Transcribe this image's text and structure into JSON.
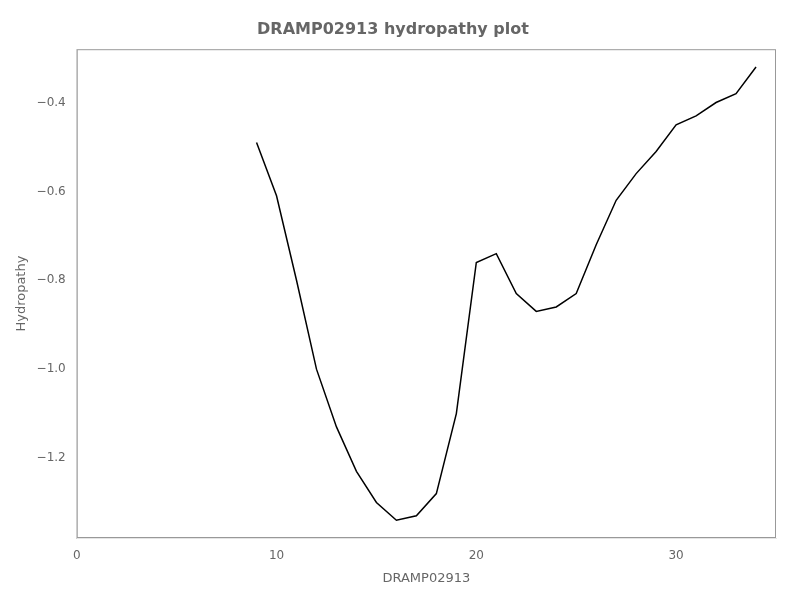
{
  "chart_data": {
    "type": "line",
    "title": "DRAMP02913 hydropathy plot",
    "x_label": "DRAMP02913",
    "y_label": "Hydropathy",
    "x": [
      9,
      10,
      11,
      12,
      13,
      14,
      15,
      16,
      17,
      18,
      19,
      20,
      21,
      22,
      23,
      24,
      25,
      26,
      27,
      28,
      29,
      30,
      31,
      32,
      33,
      34
    ],
    "values": [
      -0.49,
      -0.61,
      -0.8,
      -1.0,
      -1.13,
      -1.23,
      -1.3,
      -1.34,
      -1.33,
      -1.28,
      -1.1,
      -0.76,
      -0.74,
      -0.83,
      -0.87,
      -0.86,
      -0.83,
      -0.72,
      -0.62,
      -0.56,
      -0.51,
      -0.45,
      -0.43,
      -0.4,
      -0.38,
      -0.32
    ],
    "color": "#000000",
    "xlim": [
      0,
      35
    ],
    "xticks": [
      0,
      10,
      20,
      30
    ],
    "ylim": [
      -1.38,
      -0.28
    ],
    "yticks": [
      {
        "value": -1.2,
        "label": "−1.2"
      },
      {
        "value": -1.0,
        "label": "−1.0"
      },
      {
        "value": -0.8,
        "label": "−0.8"
      },
      {
        "value": -0.6,
        "label": "−0.6"
      },
      {
        "value": -0.4,
        "label": "−0.4"
      }
    ],
    "grid": false
  }
}
